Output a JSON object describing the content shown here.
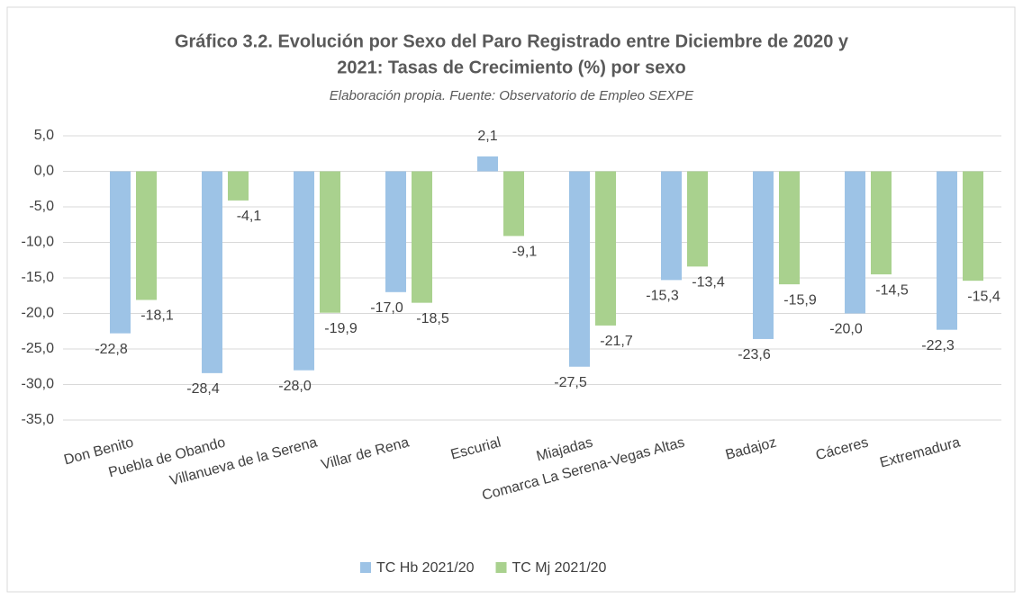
{
  "chart_data": {
    "type": "bar",
    "title": [
      "Gráfico 3.2. Evolución por Sexo del Paro Registrado entre Diciembre de 2020 y",
      "2021: Tasas de Crecimiento (%) por sexo"
    ],
    "subtitle": "Elaboración propia. Fuente: Observatorio de Empleo SEXPE",
    "categories": [
      "Don Benito",
      "Puebla de Obando",
      "Villanueva de la Serena",
      "Villar de Rena",
      "Escurial",
      "Miajadas",
      "Comarca La Serena-Vegas Altas",
      "Badajoz",
      "Cáceres",
      "Extremadura"
    ],
    "series": [
      {
        "name": "TC Hb 2021/20",
        "color": "#9dc3e6",
        "values": [
          -22.8,
          -28.4,
          -28.0,
          -17.0,
          2.1,
          -27.5,
          -15.3,
          -23.6,
          -20.0,
          -22.3
        ],
        "value_labels": [
          "-22,8",
          "-28,4",
          "-28,0",
          "-17,0",
          "2,1",
          "-27,5",
          "-15,3",
          "-23,6",
          "-20,0",
          "-22,3"
        ]
      },
      {
        "name": "TC Mj 2021/20",
        "color": "#a9d18e",
        "values": [
          -18.1,
          -4.1,
          -19.9,
          -18.5,
          -9.1,
          -21.7,
          -13.4,
          -15.9,
          -14.5,
          -15.4
        ],
        "value_labels": [
          "-18,1",
          "-4,1",
          "-19,9",
          "-18,5",
          "-9,1",
          "-21,7",
          "-13,4",
          "-15,9",
          "-14,5",
          "-15,4"
        ]
      }
    ],
    "ylim": [
      -35,
      5
    ],
    "yticks": [
      {
        "value": 5,
        "label": "5,0"
      },
      {
        "value": 0,
        "label": "0,0"
      },
      {
        "value": -5,
        "label": "-5,0"
      },
      {
        "value": -10,
        "label": "-10,0"
      },
      {
        "value": -15,
        "label": "-15,0"
      },
      {
        "value": -20,
        "label": "-20,0"
      },
      {
        "value": -25,
        "label": "-25,0"
      },
      {
        "value": -30,
        "label": "-30,0"
      },
      {
        "value": -35,
        "label": "-35,0"
      }
    ],
    "grid": true,
    "legend": "bottom"
  }
}
